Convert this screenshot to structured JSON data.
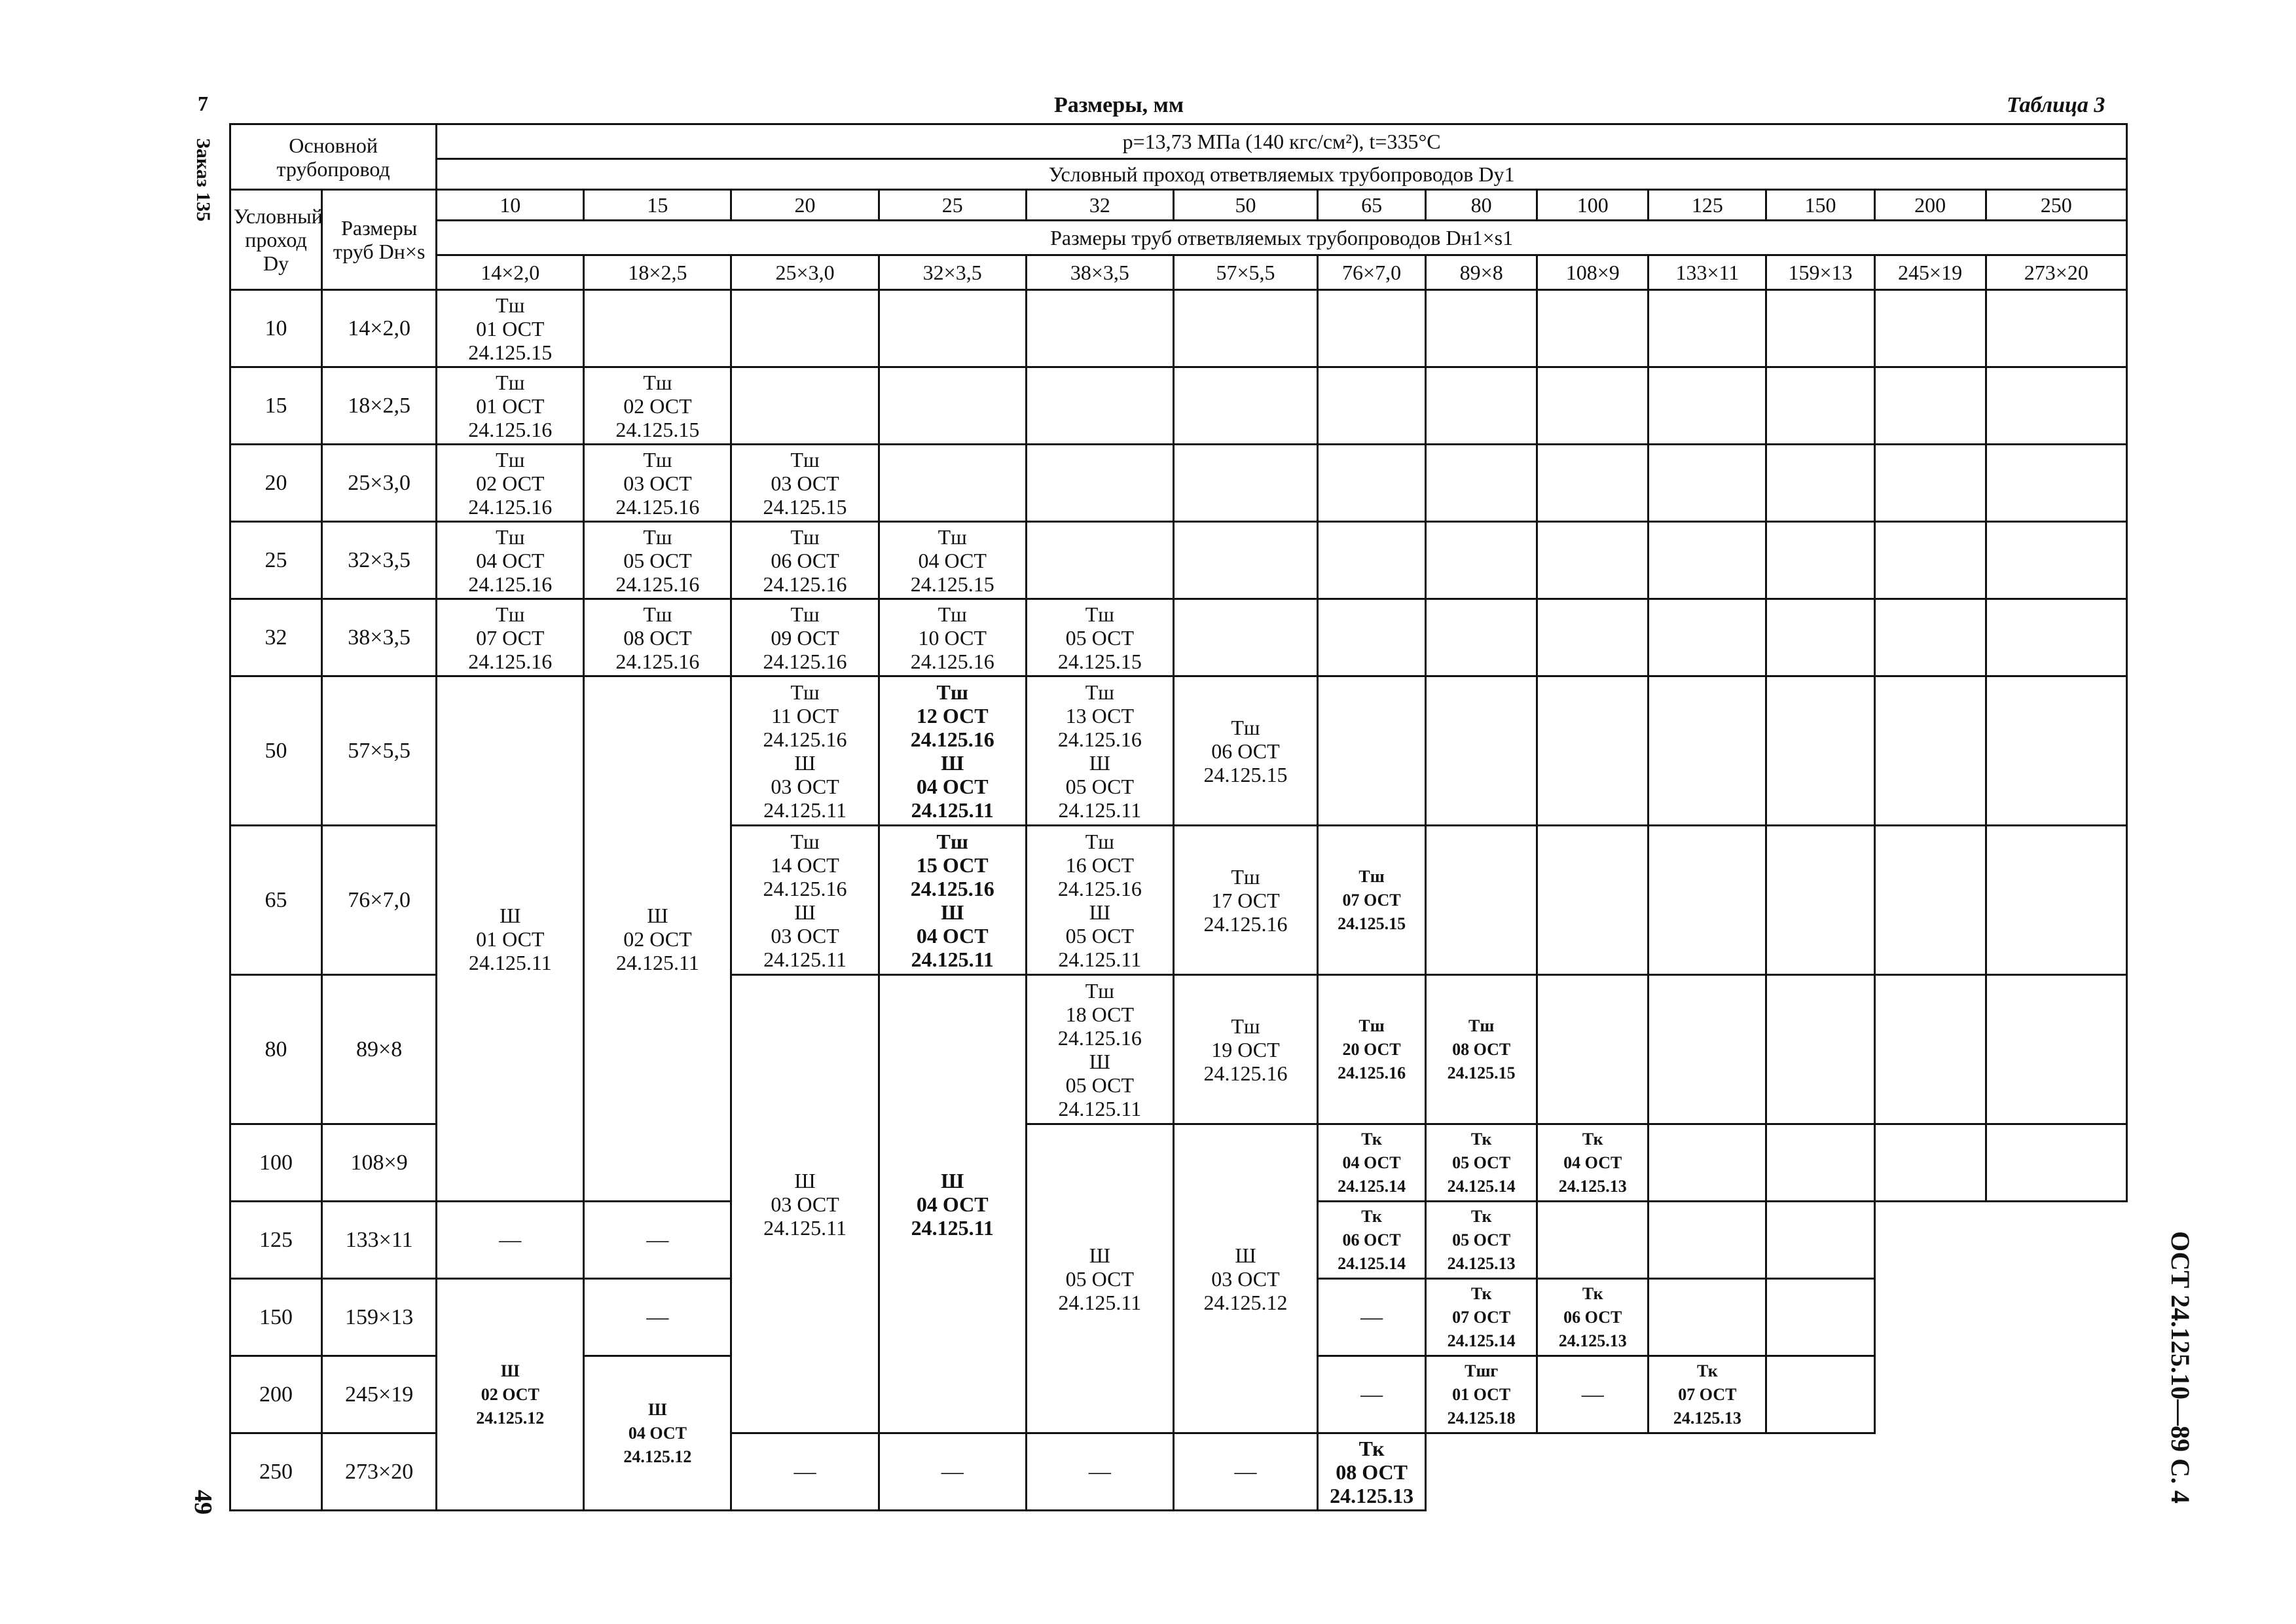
{
  "header": {
    "dimensions": "Размеры, мм",
    "table_label": "Таблица 3",
    "main_pipeline": "Основной трубопровод",
    "pressure": "p=13,73 МПа (140 кгс/см²), t=335°С",
    "branch_dn": "Условный проход ответвляемых трубопроводов Dу1",
    "dn": "Условный проход Dу",
    "pipe_size": "Размеры труб Dн×s",
    "branch_size": "Размеры труб ответвляемых трубопроводов Dн1×s1"
  },
  "margins": {
    "left_top": "7",
    "order": "Заказ 135",
    "page": "49",
    "standard": "ОСТ 24.125.10—89  С. 4"
  },
  "columns": {
    "dn": [
      "10",
      "15",
      "20",
      "25",
      "32",
      "50",
      "65",
      "80",
      "100",
      "125",
      "150",
      "200",
      "250"
    ],
    "size": [
      "14×2,0",
      "18×2,5",
      "25×3,0",
      "32×3,5",
      "38×3,5",
      "57×5,5",
      "76×7,0",
      "89×8",
      "108×9",
      "133×11",
      "159×13",
      "245×19",
      "273×20"
    ]
  },
  "rows": [
    {
      "dn": "10",
      "size": "14×2,0"
    },
    {
      "dn": "15",
      "size": "18×2,5"
    },
    {
      "dn": "20",
      "size": "25×3,0"
    },
    {
      "dn": "25",
      "size": "32×3,5"
    },
    {
      "dn": "32",
      "size": "38×3,5"
    },
    {
      "dn": "50",
      "size": "57×5,5"
    },
    {
      "dn": "65",
      "size": "76×7,0"
    },
    {
      "dn": "80",
      "size": "89×8"
    },
    {
      "dn": "100",
      "size": "108×9"
    },
    {
      "dn": "125",
      "size": "133×11"
    },
    {
      "dn": "150",
      "size": "159×13"
    },
    {
      "dn": "200",
      "size": "245×19"
    },
    {
      "dn": "250",
      "size": "273×20"
    }
  ],
  "cells": {
    "dash": "—",
    "r10_c10": [
      "Тш",
      "01 ОСТ",
      "24.125.15"
    ],
    "r15_c10": [
      "Тш",
      "01 ОСТ",
      "24.125.16"
    ],
    "r15_c15": [
      "Тш",
      "02 ОСТ",
      "24.125.15"
    ],
    "r20_c10": [
      "Тш",
      "02 ОСТ",
      "24.125.16"
    ],
    "r20_c15": [
      "Тш",
      "03 ОСТ",
      "24.125.16"
    ],
    "r20_c20": [
      "Тш",
      "03 ОСТ",
      "24.125.15"
    ],
    "r25_c10": [
      "Тш",
      "04 ОСТ",
      "24.125.16"
    ],
    "r25_c15": [
      "Тш",
      "05 ОСТ",
      "24.125.16"
    ],
    "r25_c20": [
      "Тш",
      "06 ОСТ",
      "24.125.16"
    ],
    "r25_c25": [
      "Тш",
      "04 ОСТ",
      "24.125.15"
    ],
    "r32_c10": [
      "Тш",
      "07 ОСТ",
      "24.125.16"
    ],
    "r32_c15": [
      "Тш",
      "08 ОСТ",
      "24.125.16"
    ],
    "r32_c20": [
      "Тш",
      "09 ОСТ",
      "24.125.16"
    ],
    "r32_c25": [
      "Тш",
      "10 ОСТ",
      "24.125.16"
    ],
    "r32_c32": [
      "Тш",
      "05 ОСТ",
      "24.125.15"
    ],
    "rbig_c10": [
      "Ш",
      "01 ОСТ",
      "24.125.11"
    ],
    "rbig_c15": [
      "Ш",
      "02 ОСТ",
      "24.125.11"
    ],
    "r50_c20": [
      "Тш",
      "11 ОСТ",
      "24.125.16",
      "Ш",
      "03 ОСТ",
      "24.125.11"
    ],
    "r50_c25": [
      "Тш",
      "12 ОСТ",
      "24.125.16",
      "Ш",
      "04 ОСТ",
      "24.125.11"
    ],
    "r50_c32": [
      "Тш",
      "13 ОСТ",
      "24.125.16",
      "Ш",
      "05 ОСТ",
      "24.125.11"
    ],
    "r50_c50": [
      "Тш",
      "06 ОСТ",
      "24.125.15"
    ],
    "r65_c20": [
      "Тш",
      "14 ОСТ",
      "24.125.16",
      "Ш",
      "03 ОСТ",
      "24.125.11"
    ],
    "r65_c25": [
      "Тш",
      "15 ОСТ",
      "24.125.16",
      "Ш",
      "04 ОСТ",
      "24.125.11"
    ],
    "r65_c32": [
      "Тш",
      "16 ОСТ",
      "24.125.16",
      "Ш",
      "05 ОСТ",
      "24.125.11"
    ],
    "r65_c50": [
      "Тш",
      "17 ОСТ",
      "24.125.16"
    ],
    "r65_c65": [
      "Тш",
      "07 ОСТ",
      "24.125.15"
    ],
    "rlow_c20": [
      "Ш",
      "03 ОСТ",
      "24.125.11"
    ],
    "rlow_c25": [
      "Ш",
      "04 ОСТ",
      "24.125.11"
    ],
    "r80_c32": [
      "Тш",
      "18 ОСТ",
      "24.125.16",
      "Ш",
      "05 ОСТ",
      "24.125.11"
    ],
    "r80_c50": [
      "Тш",
      "19 ОСТ",
      "24.125.16"
    ],
    "r80_c65": [
      "Тш",
      "20 ОСТ",
      "24.125.16"
    ],
    "r80_c80": [
      "Тш",
      "08 ОСТ",
      "24.125.15"
    ],
    "rlow_c32": [
      "Ш",
      "05 ОСТ",
      "24.125.11"
    ],
    "rlow_c50": [
      "Ш",
      "03 ОСТ",
      "24.125.12"
    ],
    "r100_c65": [
      "Тк",
      "04 ОСТ",
      "24.125.14"
    ],
    "r100_c80": [
      "Тк",
      "05 ОСТ",
      "24.125.14"
    ],
    "r100_c100": [
      "Тк",
      "04 ОСТ",
      "24.125.13"
    ],
    "r125_c100": [
      "Тк",
      "06 ОСТ",
      "24.125.14"
    ],
    "r125_c125": [
      "Тк",
      "05 ОСТ",
      "24.125.13"
    ],
    "rlow_c65": [
      "Ш",
      "02 ОСТ",
      "24.125.12"
    ],
    "r150_c125": [
      "Тк",
      "07 ОСТ",
      "24.125.14"
    ],
    "r150_c150": [
      "Тк",
      "06 ОСТ",
      "24.125.13"
    ],
    "rlow_c80": [
      "Ш",
      "04 ОСТ",
      "24.125.12"
    ],
    "r200_c125": [
      "Тшг",
      "01 ОСТ",
      "24.125.18"
    ],
    "r200_c200": [
      "Тк",
      "07 ОСТ",
      "24.125.13"
    ],
    "r250_c250": [
      "Тк",
      "08 ОСТ",
      "24.125.13"
    ]
  }
}
